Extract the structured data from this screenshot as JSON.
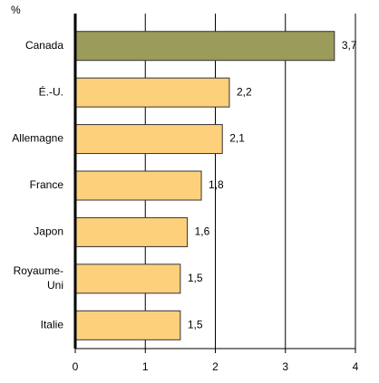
{
  "chart_data": {
    "type": "hbar",
    "unit_label": "%",
    "categories": [
      "Canada",
      "É.-U.",
      "Allemagne",
      "France",
      "Japon",
      "Royaume-Uni",
      "Italie"
    ],
    "values": [
      3.7,
      2.2,
      2.1,
      1.8,
      1.6,
      1.5,
      1.5
    ],
    "value_labels": [
      "3,7",
      "2,2",
      "2,1",
      "1,8",
      "1,6",
      "1,5",
      "1,5"
    ],
    "colors": [
      "#9b9b5a",
      "#fdd07c",
      "#fdd07c",
      "#fdd07c",
      "#fdd07c",
      "#fdd07c",
      "#fdd07c"
    ],
    "xlim": [
      0,
      4
    ],
    "xticks": [
      0,
      1,
      2,
      3,
      4
    ],
    "grid": true
  }
}
